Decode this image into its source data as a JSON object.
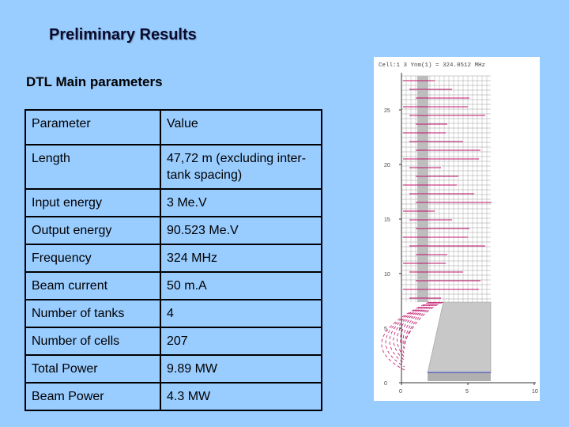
{
  "slide": {
    "title": "Preliminary Results",
    "subtitle": "DTL Main parameters"
  },
  "table": {
    "headers": [
      "Parameter",
      "Value"
    ],
    "rows": [
      {
        "param": "Length",
        "value": "47,72 m (excluding inter-tank spacing)"
      },
      {
        "param": "Input energy",
        "value": "3 Me.V"
      },
      {
        "param": "Output energy",
        "value": "90.523 Me.V"
      },
      {
        "param": "Frequency",
        "value": "324 MHz"
      },
      {
        "param": "Beam current",
        "value": "50 m.A"
      },
      {
        "param": "Number of tanks",
        "value": "4"
      },
      {
        "param": "Number of cells",
        "value": "207"
      },
      {
        "param": "Total Power",
        "value": "9.89 MW"
      },
      {
        "param": "Beam Power",
        "value": "4.3 MW"
      }
    ]
  },
  "plot": {
    "header_text": "Cell:1 3 Ynm(1) = 324.0512 MHz",
    "y_ticks": [
      "0",
      "5",
      "10",
      "15",
      "20",
      "25"
    ],
    "x_ticks": [
      "0",
      "5",
      "10"
    ],
    "colors": {
      "mesh": "#9a9a9a",
      "field": "#c0106a",
      "axis": "#333333"
    }
  }
}
